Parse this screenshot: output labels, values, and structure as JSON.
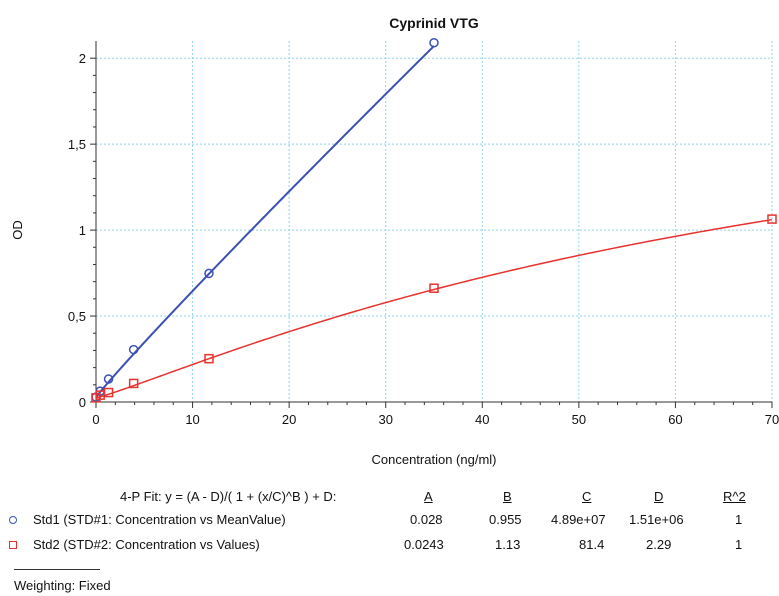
{
  "chart_data": {
    "type": "scatter",
    "title": "Cyprinid VTG",
    "xlabel": "Concentration (ng/ml)",
    "ylabel": "OD",
    "xlim": [
      0,
      70
    ],
    "ylim": [
      0,
      2.1
    ],
    "x_ticks": [
      "0",
      "10",
      "20",
      "30",
      "40",
      "50",
      "60",
      "70"
    ],
    "y_ticks": [
      "0",
      "0,5",
      "1",
      "1,5",
      "2"
    ],
    "grid": true,
    "series": [
      {
        "name": "Std1 (STD#1: Concentration vs MeanValue)",
        "marker": "circle",
        "color": "#3b50b3",
        "x": [
          0,
          0.43,
          1.3,
          3.9,
          11.7,
          35
        ],
        "y": [
          0.028,
          0.063,
          0.134,
          0.305,
          0.748,
          2.09
        ],
        "fit": {
          "A": 0.028,
          "B": 0.955,
          "C": 48900000,
          "D": 1510000
        }
      },
      {
        "name": "Std2 (STD#2: Concentration vs Values)",
        "marker": "square",
        "color": "#e8322e",
        "x": [
          0,
          0.43,
          1.3,
          3.9,
          11.7,
          35,
          70
        ],
        "y": [
          0.024,
          0.04,
          0.055,
          0.108,
          0.252,
          0.662,
          1.064
        ],
        "fit": {
          "A": 0.0243,
          "B": 1.13,
          "C": 81.4,
          "D": 2.29
        }
      }
    ]
  },
  "fit_table": {
    "header_label": "4-P Fit: y = (A - D)/( 1 + (x/C)^B ) + D:",
    "columns": [
      "A",
      "B",
      "C",
      "D",
      "R^2"
    ],
    "rows": [
      {
        "label": "Std1 (STD#1: Concentration vs MeanValue)",
        "values": [
          "0.028",
          "0.955",
          "4.89e+07",
          "1.51e+06",
          "1"
        ]
      },
      {
        "label": "Std2 (STD#2: Concentration vs Values)",
        "values": [
          "0.0243",
          "1.13",
          "81.4",
          "2.29",
          "1"
        ]
      }
    ],
    "weighting": "Weighting: Fixed"
  }
}
